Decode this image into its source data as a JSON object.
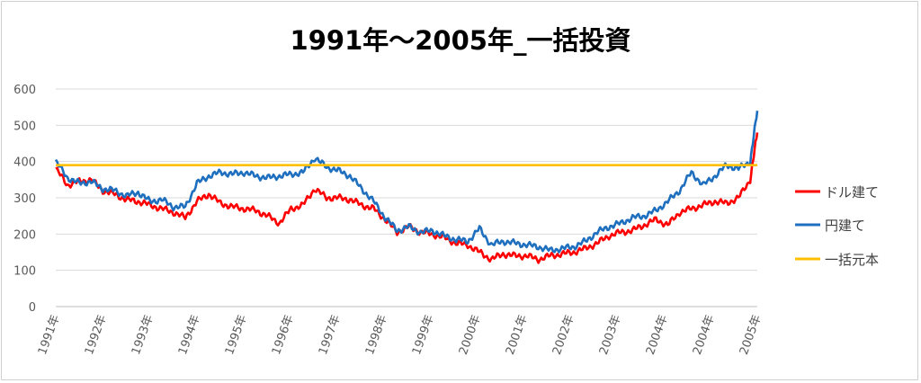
{
  "chart_data": {
    "type": "line",
    "title": "1991年～2005年_一括投資",
    "xlabel": "",
    "ylabel": "",
    "ylim": [
      0,
      600
    ],
    "yticks": [
      0,
      100,
      200,
      300,
      400,
      500,
      600
    ],
    "x_tick_labels": [
      "1991年",
      "1992年",
      "1993年",
      "1994年",
      "1995年",
      "1996年",
      "1997年",
      "1998年",
      "1999年",
      "2000年",
      "2001年",
      "2002年",
      "2003年",
      "2004年",
      "2004年",
      "2005年"
    ],
    "x": [
      1991.0,
      1991.25,
      1991.5,
      1991.75,
      1992.0,
      1992.25,
      1992.5,
      1992.75,
      1993.0,
      1993.25,
      1993.5,
      1993.75,
      1994.0,
      1994.25,
      1994.5,
      1994.75,
      1995.0,
      1995.25,
      1995.5,
      1995.75,
      1996.0,
      1996.25,
      1996.5,
      1996.75,
      1997.0,
      1997.25,
      1997.5,
      1997.75,
      1998.0,
      1998.25,
      1998.5,
      1998.75,
      1999.0,
      1999.25,
      1999.5,
      1999.75,
      2000.0,
      2000.25,
      2000.5,
      2000.75,
      2001.0,
      2001.25,
      2001.5,
      2001.75,
      2002.0,
      2002.25,
      2002.5,
      2002.75,
      2003.0,
      2003.25,
      2003.5,
      2003.75,
      2004.0,
      2004.25,
      2004.5,
      2004.75,
      2005.0,
      2005.25,
      2005.5,
      2005.75,
      2005.9
    ],
    "x_range": [
      1991.0,
      2005.9
    ],
    "grid": true,
    "legend_position": "right",
    "series": [
      {
        "name": "ドル建て",
        "color": "#ff0000",
        "values": [
          380,
          335,
          345,
          350,
          320,
          310,
          295,
          290,
          280,
          270,
          260,
          245,
          290,
          310,
          285,
          275,
          270,
          265,
          250,
          230,
          270,
          280,
          325,
          300,
          300,
          295,
          280,
          270,
          240,
          205,
          220,
          205,
          200,
          190,
          175,
          170,
          150,
          130,
          145,
          140,
          140,
          130,
          140,
          145,
          150,
          160,
          175,
          195,
          205,
          210,
          225,
          240,
          225,
          260,
          270,
          280,
          290,
          285,
          300,
          350,
          480
        ]
      },
      {
        "name": "円建て",
        "color": "#1f6fbf",
        "values": [
          400,
          355,
          340,
          345,
          325,
          320,
          305,
          315,
          290,
          295,
          275,
          275,
          340,
          360,
          370,
          365,
          370,
          360,
          355,
          360,
          365,
          370,
          410,
          385,
          375,
          360,
          325,
          290,
          245,
          210,
          220,
          205,
          210,
          195,
          185,
          180,
          215,
          170,
          180,
          175,
          170,
          165,
          155,
          160,
          165,
          180,
          205,
          220,
          230,
          245,
          250,
          265,
          290,
          320,
          370,
          335,
          360,
          390,
          380,
          400,
          540
        ]
      },
      {
        "name": "一括元本",
        "color": "#ffc000",
        "values": [
          390,
          390,
          390,
          390,
          390,
          390,
          390,
          390,
          390,
          390,
          390,
          390,
          390,
          390,
          390,
          390,
          390,
          390,
          390,
          390,
          390,
          390,
          390,
          390,
          390,
          390,
          390,
          390,
          390,
          390,
          390,
          390,
          390,
          390,
          390,
          390,
          390,
          390,
          390,
          390,
          390,
          390,
          390,
          390,
          390,
          390,
          390,
          390,
          390,
          390,
          390,
          390,
          390,
          390,
          390,
          390,
          390,
          390,
          390,
          390,
          390
        ]
      }
    ]
  }
}
